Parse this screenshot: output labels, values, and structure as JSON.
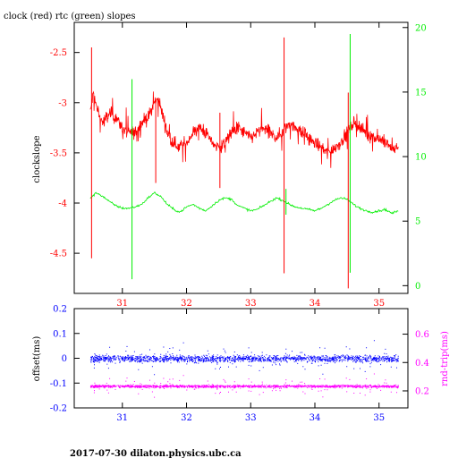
{
  "title": "clock (red) rtc (green) slopes",
  "footer": "2017-07-30  dilaton.physics.ubc.ca",
  "colors": {
    "red": "#ff0000",
    "green": "#00ee00",
    "blue": "#0000ff",
    "magenta": "#ff00ff",
    "frame": "#000000"
  },
  "chart_data": [
    {
      "type": "line",
      "title": "clock (red) rtc (green) slopes",
      "ylabel": "clockslope",
      "xlim": [
        30.25,
        35.45
      ],
      "ylim": [
        -4.9,
        -2.2
      ],
      "y2lim": [
        -0.6,
        20.4
      ],
      "x_ticks": [
        31,
        32,
        33,
        34,
        35
      ],
      "y_ticks": [
        -4.5,
        -4,
        -3.5,
        -3,
        -2.5
      ],
      "y2_ticks": [
        0,
        5,
        10,
        15,
        20
      ],
      "grid": false,
      "series": [
        {
          "name": "clock",
          "color": "#ff0000",
          "axis": "left",
          "x": [
            30.5,
            30.55,
            30.6,
            30.65,
            30.7,
            30.8,
            30.9,
            31.0,
            31.1,
            31.2,
            31.3,
            31.4,
            31.5,
            31.55,
            31.6,
            31.7,
            31.8,
            31.9,
            32.0,
            32.1,
            32.2,
            32.3,
            32.4,
            32.5,
            32.6,
            32.7,
            32.8,
            32.9,
            33.0,
            33.1,
            33.2,
            33.3,
            33.4,
            33.5,
            33.6,
            33.7,
            33.8,
            33.9,
            34.0,
            34.1,
            34.2,
            34.3,
            34.4,
            34.5,
            34.6,
            34.7,
            34.8,
            34.9,
            35.0,
            35.1,
            35.2,
            35.3
          ],
          "y": [
            -3.1,
            -2.9,
            -3.05,
            -3.15,
            -3.2,
            -3.1,
            -3.15,
            -3.25,
            -3.3,
            -3.3,
            -3.2,
            -3.15,
            -3.0,
            -2.95,
            -3.05,
            -3.3,
            -3.4,
            -3.45,
            -3.4,
            -3.3,
            -3.25,
            -3.3,
            -3.4,
            -3.45,
            -3.4,
            -3.3,
            -3.25,
            -3.3,
            -3.35,
            -3.3,
            -3.25,
            -3.3,
            -3.35,
            -3.3,
            -3.2,
            -3.25,
            -3.3,
            -3.35,
            -3.4,
            -3.45,
            -3.5,
            -3.45,
            -3.4,
            -3.3,
            -3.2,
            -3.25,
            -3.3,
            -3.35,
            -3.35,
            -3.4,
            -3.45,
            -3.45
          ],
          "noise": 0.07
        },
        {
          "name": "rtc",
          "color": "#00ee00",
          "axis": "right",
          "x": [
            30.5,
            30.6,
            30.7,
            30.8,
            30.9,
            31.0,
            31.1,
            31.2,
            31.3,
            31.4,
            31.5,
            31.6,
            31.7,
            31.8,
            31.9,
            32.0,
            32.1,
            32.2,
            32.3,
            32.4,
            32.5,
            32.6,
            32.7,
            32.8,
            32.9,
            33.0,
            33.1,
            33.2,
            33.3,
            33.4,
            33.5,
            33.6,
            33.7,
            33.8,
            33.9,
            34.0,
            34.1,
            34.2,
            34.3,
            34.4,
            34.5,
            34.6,
            34.7,
            34.8,
            34.9,
            35.0,
            35.1,
            35.2,
            35.3
          ],
          "y": [
            6.8,
            7.2,
            6.9,
            6.5,
            6.2,
            6.0,
            6.0,
            6.1,
            6.3,
            6.8,
            7.2,
            6.9,
            6.3,
            5.9,
            5.7,
            6.1,
            6.3,
            6.0,
            5.8,
            6.2,
            6.6,
            6.8,
            6.7,
            6.2,
            6.0,
            5.8,
            5.9,
            6.2,
            6.5,
            6.8,
            6.6,
            6.3,
            6.1,
            6.0,
            5.9,
            5.8,
            6.0,
            6.3,
            6.6,
            6.8,
            6.7,
            6.3,
            6.0,
            5.8,
            5.7,
            5.8,
            5.9,
            5.6,
            5.8
          ],
          "noise": 0.15
        }
      ],
      "spikes": [
        {
          "series": "clock",
          "x": 30.52,
          "y_low": -4.55,
          "y_high": -2.45
        },
        {
          "series": "clock",
          "x": 31.52,
          "y_low": -3.8,
          "y_high": -3.0
        },
        {
          "series": "clock",
          "x": 32.52,
          "y_low": -3.85,
          "y_high": -3.1
        },
        {
          "series": "clock",
          "x": 33.52,
          "y_low": -4.7,
          "y_high": -2.35
        },
        {
          "series": "clock",
          "x": 34.52,
          "y_low": -4.85,
          "y_high": -2.9
        },
        {
          "series": "rtc",
          "x": 31.15,
          "y_low": 0.5,
          "y_high": 16.0
        },
        {
          "series": "rtc",
          "x": 34.55,
          "y_low": 1.0,
          "y_high": 19.5
        },
        {
          "series": "rtc",
          "x": 33.55,
          "y_low": 5.5,
          "y_high": 7.5
        }
      ]
    },
    {
      "type": "scatter",
      "ylabel": "offset(ms)",
      "y2label": "rnd-trip(ms)",
      "xlim": [
        30.25,
        35.45
      ],
      "ylim": [
        -0.2,
        0.2
      ],
      "y2lim": [
        0.08,
        0.78
      ],
      "x_ticks": [
        31,
        32,
        33,
        34,
        35
      ],
      "y_ticks": [
        -0.2,
        -0.1,
        0,
        0.1,
        0.2
      ],
      "y2_ticks": [
        0.2,
        0.4,
        0.6
      ],
      "grid": false,
      "series": [
        {
          "name": "offset",
          "color": "#0000ff",
          "axis": "left",
          "x_range": [
            30.5,
            35.3
          ],
          "center": 0.0,
          "spread": 0.012,
          "outlier_spread": 0.05
        },
        {
          "name": "rnd-trip",
          "color": "#ff00ff",
          "axis": "right",
          "x_range": [
            30.5,
            35.3
          ],
          "center": 0.235,
          "spread": 0.008,
          "outlier_spread": 0.06
        }
      ]
    }
  ]
}
